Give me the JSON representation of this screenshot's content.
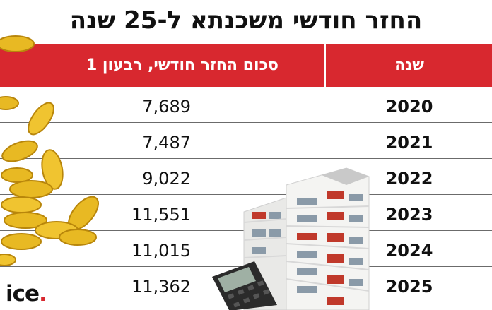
{
  "title": "החזר חודשי משכנתא ל-25 שנה",
  "header": {
    "year_label": "שנה",
    "amount_label": "סכום החזר חודשי, רבעון 1"
  },
  "rows": [
    {
      "year": "2020",
      "amount": "7,689"
    },
    {
      "year": "2021",
      "amount": "7,487"
    },
    {
      "year": "2022",
      "amount": "9,022"
    },
    {
      "year": "2023",
      "amount": "11,551"
    },
    {
      "year": "2024",
      "amount": "11,015"
    },
    {
      "year": "2025",
      "amount": "11,362"
    }
  ],
  "logo": {
    "text": "ice"
  },
  "colors": {
    "accent": "#d8282f",
    "coin": "#e8b923",
    "text": "#111111"
  },
  "icons": [
    "gold-coins-icon",
    "building-icon",
    "calculator-icon"
  ]
}
